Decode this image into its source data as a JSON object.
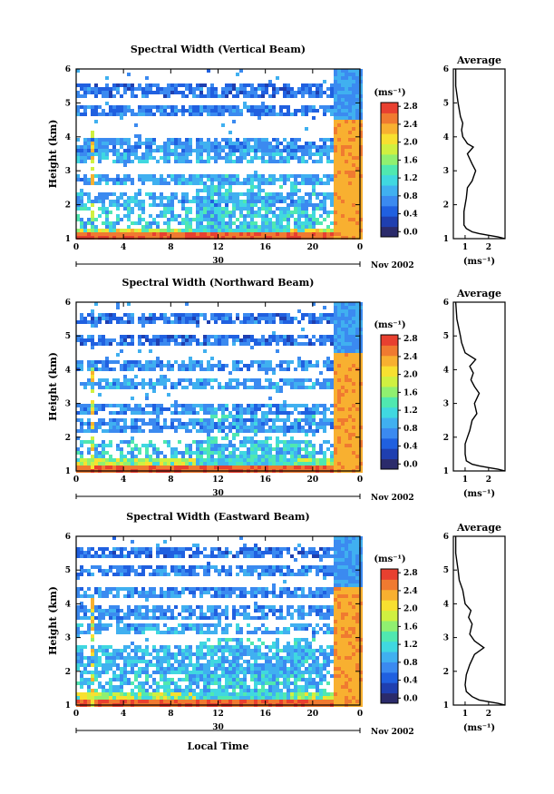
{
  "bottom_xlabel": "Local Time",
  "colorbar_unit": "(ms⁻¹)",
  "chart_data": [
    {
      "type": "heatmap",
      "title": "Spectral Width (Vertical Beam)",
      "ylabel": "Height (km)",
      "ylim": [
        1,
        6
      ],
      "yticks": [
        "1",
        "2",
        "3",
        "4",
        "5",
        "6"
      ],
      "xlim": [
        0,
        24
      ],
      "xticks": [
        "0",
        "4",
        "8",
        "12",
        "16",
        "20",
        "0"
      ],
      "date_day": "30",
      "date_month_year": "Nov 2002",
      "colorbar": {
        "unit": "(ms⁻¹)",
        "range": [
          0,
          3
        ],
        "ticks": [
          "0.0",
          "0.4",
          "0.8",
          "1.2",
          "1.6",
          "2.0",
          "2.4",
          "2.8"
        ]
      },
      "bands": [
        {
          "y": 5.4,
          "v": 0.6
        },
        {
          "y": 4.8,
          "v": 0.7
        },
        {
          "y": 3.8,
          "v": 0.8
        },
        {
          "y": 3.5,
          "v": 1.0
        },
        {
          "y": 2.8,
          "v": 0.9
        },
        {
          "y": 2.2,
          "v": 0.9
        }
      ],
      "average": {
        "title": "Average",
        "xlabel": "(ms⁻¹)",
        "xticks": [
          "1",
          "2"
        ],
        "xlim": [
          0.5,
          2.7
        ],
        "profile": [
          [
            1.0,
            2.7
          ],
          [
            1.05,
            2.4
          ],
          [
            1.1,
            2.0
          ],
          [
            1.15,
            1.6
          ],
          [
            1.2,
            1.3
          ],
          [
            1.3,
            1.05
          ],
          [
            1.4,
            0.95
          ],
          [
            1.5,
            0.95
          ],
          [
            1.8,
            0.95
          ],
          [
            2.0,
            1.0
          ],
          [
            2.2,
            1.05
          ],
          [
            2.5,
            1.1
          ],
          [
            2.7,
            1.3
          ],
          [
            3.0,
            1.45
          ],
          [
            3.2,
            1.3
          ],
          [
            3.5,
            1.1
          ],
          [
            3.7,
            1.35
          ],
          [
            3.8,
            1.1
          ],
          [
            3.9,
            1.0
          ],
          [
            4.0,
            0.9
          ],
          [
            4.2,
            0.85
          ],
          [
            4.4,
            0.9
          ],
          [
            4.6,
            0.8
          ],
          [
            5.0,
            0.7
          ],
          [
            5.5,
            0.6
          ],
          [
            6.0,
            0.6
          ]
        ]
      }
    },
    {
      "type": "heatmap",
      "title": "Spectral Width (Northward Beam)",
      "ylabel": "Height (km)",
      "ylim": [
        1,
        6
      ],
      "yticks": [
        "1",
        "2",
        "3",
        "4",
        "5",
        "6"
      ],
      "xlim": [
        0,
        24
      ],
      "xticks": [
        "0",
        "4",
        "8",
        "12",
        "16",
        "20",
        "0"
      ],
      "date_day": "30",
      "date_month_year": "Nov 2002",
      "colorbar": {
        "unit": "(ms⁻¹)",
        "range": [
          0,
          3
        ],
        "ticks": [
          "0.0",
          "0.4",
          "0.8",
          "1.2",
          "1.6",
          "2.0",
          "2.4",
          "2.8"
        ]
      },
      "bands": [
        {
          "y": 5.6,
          "v": 0.6
        },
        {
          "y": 4.9,
          "v": 0.6
        },
        {
          "y": 4.2,
          "v": 0.8
        },
        {
          "y": 3.6,
          "v": 0.9
        },
        {
          "y": 2.9,
          "v": 0.8
        },
        {
          "y": 2.4,
          "v": 0.8
        }
      ],
      "average": {
        "title": "Average",
        "xlabel": "(ms⁻¹)",
        "xticks": [
          "1",
          "2"
        ],
        "xlim": [
          0.5,
          2.7
        ],
        "profile": [
          [
            1.0,
            2.7
          ],
          [
            1.05,
            2.4
          ],
          [
            1.1,
            2.0
          ],
          [
            1.15,
            1.6
          ],
          [
            1.2,
            1.3
          ],
          [
            1.3,
            1.05
          ],
          [
            1.5,
            1.0
          ],
          [
            1.8,
            1.0
          ],
          [
            2.0,
            1.1
          ],
          [
            2.2,
            1.2
          ],
          [
            2.5,
            1.3
          ],
          [
            2.7,
            1.5
          ],
          [
            3.0,
            1.4
          ],
          [
            3.3,
            1.6
          ],
          [
            3.5,
            1.4
          ],
          [
            3.7,
            1.25
          ],
          [
            3.9,
            1.35
          ],
          [
            4.1,
            1.2
          ],
          [
            4.3,
            1.45
          ],
          [
            4.5,
            1.0
          ],
          [
            4.8,
            0.85
          ],
          [
            5.0,
            0.8
          ],
          [
            5.5,
            0.65
          ],
          [
            6.0,
            0.6
          ]
        ]
      }
    },
    {
      "type": "heatmap",
      "title": "Spectral Width (Eastward Beam)",
      "ylabel": "Height (km)",
      "ylim": [
        1,
        6
      ],
      "yticks": [
        "1",
        "2",
        "3",
        "4",
        "5",
        "6"
      ],
      "xlim": [
        0,
        24
      ],
      "xticks": [
        "0",
        "4",
        "8",
        "12",
        "16",
        "20",
        "0"
      ],
      "date_day": "30",
      "date_month_year": "Nov 2002",
      "colorbar": {
        "unit": "(ms⁻¹)",
        "range": [
          0,
          3
        ],
        "ticks": [
          "0.0",
          "0.4",
          "0.8",
          "1.2",
          "1.6",
          "2.0",
          "2.4",
          "2.8"
        ]
      },
      "bands": [
        {
          "y": 5.6,
          "v": 0.6
        },
        {
          "y": 5.0,
          "v": 0.7
        },
        {
          "y": 4.4,
          "v": 0.8
        },
        {
          "y": 3.8,
          "v": 0.8
        },
        {
          "y": 3.3,
          "v": 0.9
        },
        {
          "y": 2.6,
          "v": 1.0
        },
        {
          "y": 2.2,
          "v": 1.0
        }
      ],
      "average": {
        "title": "Average",
        "xlabel": "(ms⁻¹)",
        "xticks": [
          "1",
          "2"
        ],
        "xlim": [
          0.5,
          2.7
        ],
        "profile": [
          [
            1.0,
            2.7
          ],
          [
            1.05,
            2.4
          ],
          [
            1.1,
            2.0
          ],
          [
            1.15,
            1.6
          ],
          [
            1.25,
            1.3
          ],
          [
            1.4,
            1.05
          ],
          [
            1.6,
            1.0
          ],
          [
            1.9,
            1.05
          ],
          [
            2.2,
            1.2
          ],
          [
            2.5,
            1.4
          ],
          [
            2.7,
            1.8
          ],
          [
            2.9,
            1.4
          ],
          [
            3.1,
            1.2
          ],
          [
            3.4,
            1.3
          ],
          [
            3.6,
            1.15
          ],
          [
            3.8,
            1.25
          ],
          [
            4.0,
            1.0
          ],
          [
            4.2,
            0.95
          ],
          [
            4.4,
            0.9
          ],
          [
            4.7,
            0.75
          ],
          [
            5.0,
            0.7
          ],
          [
            5.5,
            0.6
          ],
          [
            6.0,
            0.6
          ]
        ]
      }
    }
  ]
}
